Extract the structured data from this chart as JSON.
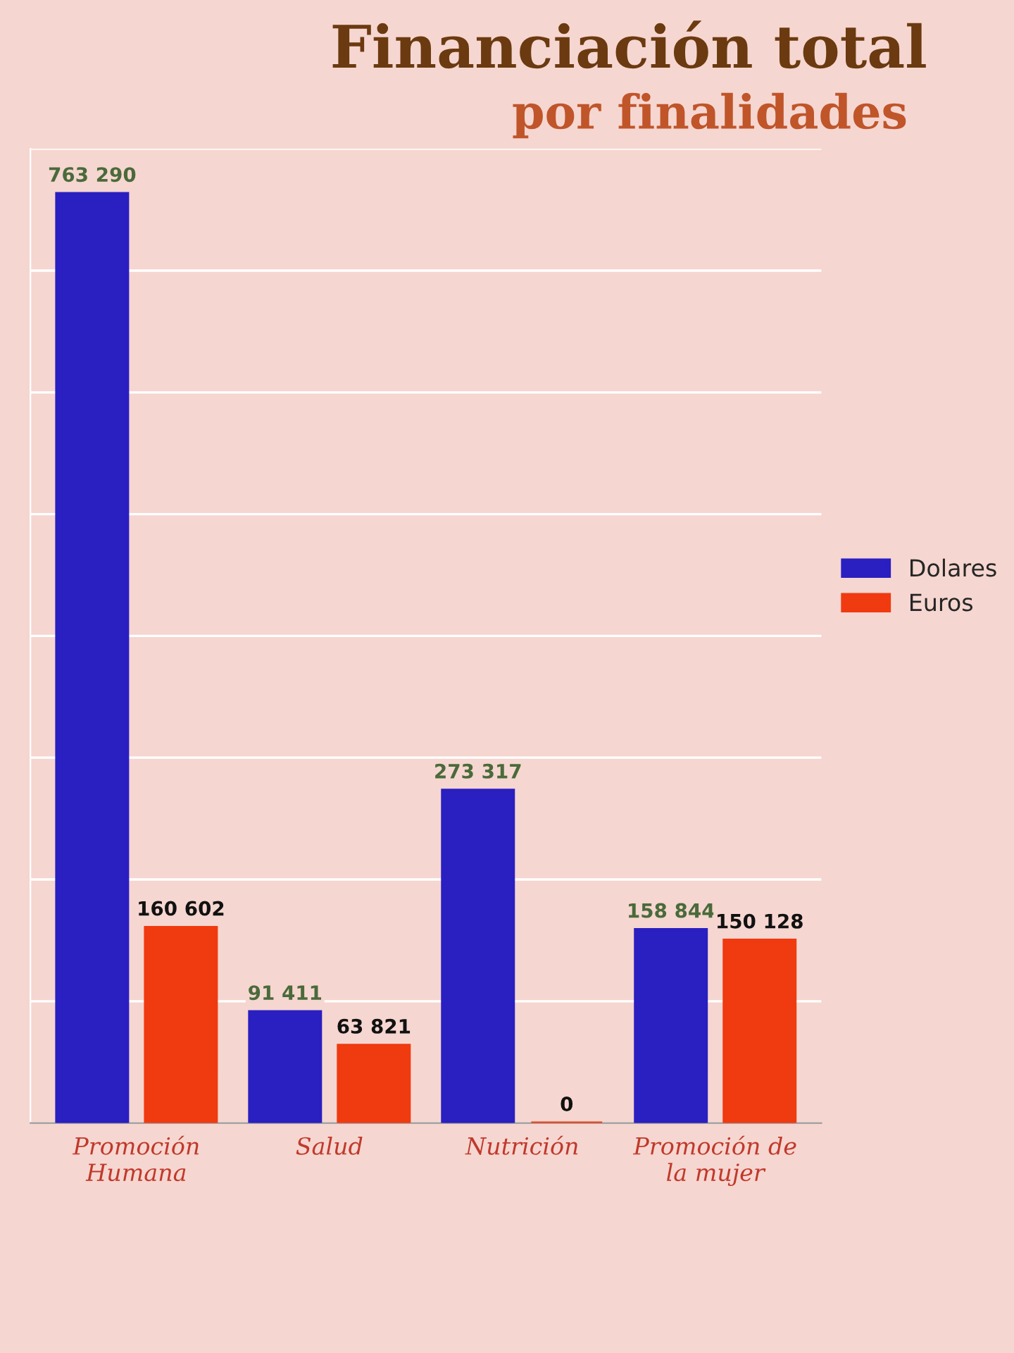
{
  "chart_data": {
    "type": "bar",
    "title": "Financiación total",
    "subtitle": "por finalidades",
    "categories": [
      "Promoción\nHumana",
      "Salud",
      "Nutrición",
      "Promoción de\nla mujer"
    ],
    "series": [
      {
        "name": "Dolares",
        "color": "#2a1fc0",
        "values": [
          763290,
          91411,
          273317,
          158844
        ],
        "value_labels": [
          "763 290",
          "91 411",
          "273 317",
          "158 844"
        ]
      },
      {
        "name": "Euros",
        "color": "#f03a10",
        "values": [
          160602,
          63821,
          0,
          150128
        ],
        "value_labels": [
          "160 602",
          "63 821",
          "0",
          "150 128"
        ]
      }
    ],
    "ylim": [
      0,
      800000
    ],
    "yticks": [
      {
        "value": 0,
        "label": null
      },
      {
        "value": 100000,
        "label": null
      },
      {
        "value": 200000,
        "label": null
      },
      {
        "value": 300000,
        "label": null
      },
      {
        "value": 400000,
        "label": null
      },
      {
        "value": 500000,
        "label": null
      },
      {
        "value": 600000,
        "label": null
      },
      {
        "value": 700000,
        "label": null
      },
      {
        "value": 800000,
        "label": null
      }
    ],
    "tick_labels": "x",
    "grid": "y",
    "legend": "right"
  }
}
